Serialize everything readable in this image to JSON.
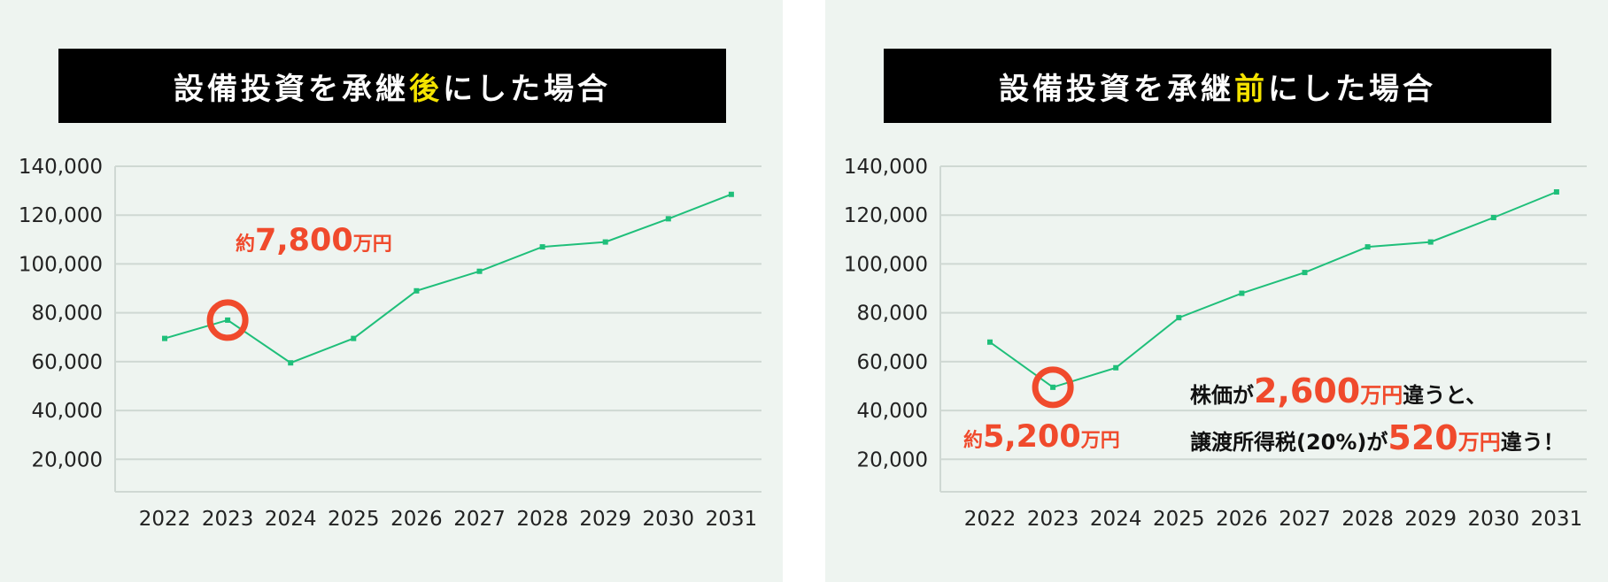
{
  "panels": [
    {
      "title": {
        "pre": "設備投資を承継",
        "highlight": "後",
        "post": "にした場合"
      },
      "annotation": {
        "prefix": "約",
        "value": "7,800",
        "unit": "万円"
      }
    },
    {
      "title": {
        "pre": "設備投資を承継",
        "highlight": "前",
        "post": "にした場合"
      },
      "annotation": {
        "prefix": "約",
        "value": "5,200",
        "unit": "万円"
      },
      "note": {
        "line1_pre": "株価が",
        "line1_value": "2,600",
        "line1_unit": "万円",
        "line1_post": "違うと、",
        "line2_pre": "譲渡所得税(20%)が",
        "line2_value": "520",
        "line2_unit": "万円",
        "line2_post": "違う！"
      }
    }
  ],
  "colors": {
    "line": "#1fbf7a",
    "highlight": "#f04a2c",
    "title_accent": "#f4e300",
    "grid": "#cfd8d3",
    "background": "#eef4f0"
  },
  "chart_data": [
    {
      "type": "line",
      "title": "設備投資を承継後にした場合",
      "categories": [
        "2022",
        "2023",
        "2024",
        "2025",
        "2026",
        "2027",
        "2028",
        "2029",
        "2030",
        "2031"
      ],
      "series": [
        {
          "values": [
            69500,
            77000,
            59500,
            69500,
            89000,
            97000,
            107000,
            109000,
            118500,
            128500
          ]
        }
      ],
      "y_ticks": [
        "20,000",
        "40,000",
        "60,000",
        "80,000",
        "100,000",
        "120,000",
        "140,000"
      ],
      "ylim": [
        6700,
        140000
      ],
      "highlight_index": 1,
      "grid": true
    },
    {
      "type": "line",
      "title": "設備投資を承継前にした場合",
      "categories": [
        "2022",
        "2023",
        "2024",
        "2025",
        "2026",
        "2027",
        "2028",
        "2029",
        "2030",
        "2031"
      ],
      "series": [
        {
          "values": [
            68000,
            49500,
            57500,
            78000,
            88000,
            96500,
            107000,
            109000,
            119000,
            129500
          ]
        }
      ],
      "y_ticks": [
        "20,000",
        "40,000",
        "60,000",
        "80,000",
        "100,000",
        "120,000",
        "140,000"
      ],
      "ylim": [
        6700,
        140000
      ],
      "highlight_index": 1,
      "grid": true
    }
  ]
}
